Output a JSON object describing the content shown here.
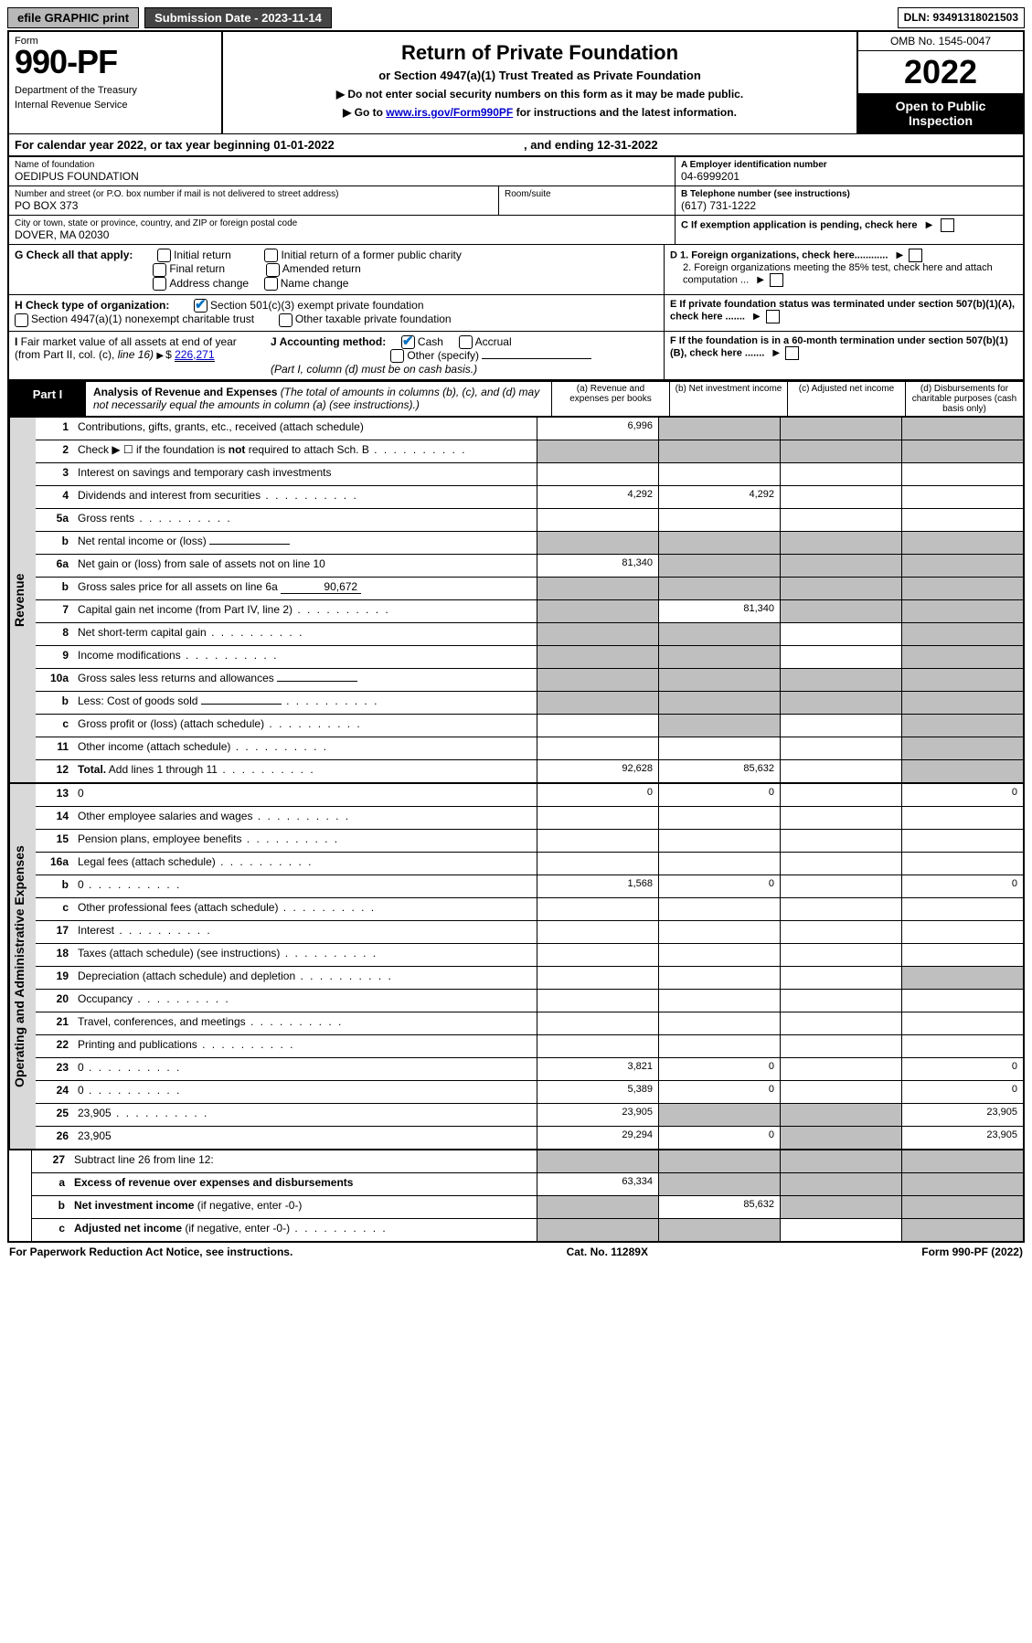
{
  "topbar": {
    "efile": "efile GRAPHIC print",
    "submission_label": "Submission Date - 2023-11-14",
    "dln": "DLN: 93491318021503"
  },
  "header": {
    "form_word": "Form",
    "form_number": "990-PF",
    "dept1": "Department of the Treasury",
    "dept2": "Internal Revenue Service",
    "title": "Return of Private Foundation",
    "subtitle": "or Section 4947(a)(1) Trust Treated as Private Foundation",
    "note1": "▶ Do not enter social security numbers on this form as it may be made public.",
    "note2_pre": "▶ Go to ",
    "note2_link": "www.irs.gov/Form990PF",
    "note2_post": " for instructions and the latest information.",
    "omb": "OMB No. 1545-0047",
    "year": "2022",
    "open": "Open to Public Inspection"
  },
  "cal": {
    "text": "For calendar year 2022, or tax year beginning 01-01-2022",
    "mid": ", and ending 12-31-2022"
  },
  "id": {
    "name_lbl": "Name of foundation",
    "name": "OEDIPUS FOUNDATION",
    "addr_lbl": "Number and street (or P.O. box number if mail is not delivered to street address)",
    "addr": "PO BOX 373",
    "room_lbl": "Room/suite",
    "city_lbl": "City or town, state or province, country, and ZIP or foreign postal code",
    "city": "DOVER, MA  02030",
    "A_lbl": "A Employer identification number",
    "A_val": "04-6999201",
    "B_lbl": "B Telephone number (see instructions)",
    "B_val": "(617) 731-1222",
    "C_lbl": "C If exemption application is pending, check here"
  },
  "G": {
    "lbl": "G Check all that apply:",
    "opts": [
      "Initial return",
      "Final return",
      "Address change",
      "Initial return of a former public charity",
      "Amended return",
      "Name change"
    ]
  },
  "D": {
    "d1": "D 1. Foreign organizations, check here............",
    "d2": "2. Foreign organizations meeting the 85% test, check here and attach computation ...",
    "E": "E  If private foundation status was terminated under section 507(b)(1)(A), check here .......",
    "F": "F  If the foundation is in a 60-month termination under section 507(b)(1)(B), check here ......."
  },
  "H": {
    "lbl": "H Check type of organization:",
    "o1": "Section 501(c)(3) exempt private foundation",
    "o2": "Section 4947(a)(1) nonexempt charitable trust",
    "o3": "Other taxable private foundation"
  },
  "I": {
    "lbl": "I Fair market value of all assets at end of year (from Part II, col. (c), line 16) ▶$",
    "val": "226,271"
  },
  "J": {
    "lbl": "J Accounting method:",
    "cash": "Cash",
    "accrual": "Accrual",
    "other": "Other (specify)",
    "note": "(Part I, column (d) must be on cash basis.)"
  },
  "part1": {
    "label": "Part I",
    "title": "Analysis of Revenue and Expenses",
    "title_note": " (The total of amounts in columns (b), (c), and (d) may not necessarily equal the amounts in column (a) (see instructions).)",
    "col_a": "(a)   Revenue and expenses per books",
    "col_b": "(b)   Net investment income",
    "col_c": "(c)   Adjusted net income",
    "col_d": "(d)  Disbursements for charitable purposes (cash basis only)"
  },
  "side": {
    "rev": "Revenue",
    "exp": "Operating and Administrative Expenses"
  },
  "rows": {
    "1": {
      "n": "1",
      "d": "Contributions, gifts, grants, etc., received (attach schedule)",
      "a": "6,996",
      "shade_bcd": true
    },
    "2": {
      "n": "2",
      "d": "Check ▶ ☐ if the foundation is <b>not</b> required to attach Sch. B",
      "all_shade": true,
      "dots": true
    },
    "3": {
      "n": "3",
      "d": "Interest on savings and temporary cash investments"
    },
    "4": {
      "n": "4",
      "d": "Dividends and interest from securities",
      "a": "4,292",
      "b": "4,292",
      "dots": true
    },
    "5a": {
      "n": "5a",
      "d": "Gross rents",
      "dots": true
    },
    "5b": {
      "n": "b",
      "d": "Net rental income or (loss)",
      "inline": "",
      "all_shade": true
    },
    "6a": {
      "n": "6a",
      "d": "Net gain or (loss) from sale of assets not on line 10",
      "a": "81,340",
      "shade_bcd": true
    },
    "6b": {
      "n": "b",
      "d": "Gross sales price for all assets on line 6a",
      "inline": "90,672",
      "all_shade": true
    },
    "7": {
      "n": "7",
      "d": "Capital gain net income (from Part IV, line 2)",
      "b": "81,340",
      "shade_a": true,
      "shade_cd": true,
      "dots": true
    },
    "8": {
      "n": "8",
      "d": "Net short-term capital gain",
      "shade_ab": true,
      "shade_d": true,
      "dots": true
    },
    "9": {
      "n": "9",
      "d": "Income modifications",
      "shade_ab": true,
      "shade_d": true,
      "dots": true
    },
    "10a": {
      "n": "10a",
      "d": "Gross sales less returns and allowances",
      "inline": "",
      "all_shade": true
    },
    "10b": {
      "n": "b",
      "d": "Less: Cost of goods sold",
      "inline": "",
      "all_shade": true,
      "dots": true
    },
    "10c": {
      "n": "c",
      "d": "Gross profit or (loss) (attach schedule)",
      "shade_b": true,
      "shade_d": true,
      "dots": true
    },
    "11": {
      "n": "11",
      "d": "Other income (attach schedule)",
      "shade_d": true,
      "dots": true
    },
    "12": {
      "n": "12",
      "d": "<b>Total.</b> Add lines 1 through 11",
      "a": "92,628",
      "b": "85,632",
      "shade_d": true,
      "dots": true
    },
    "13": {
      "n": "13",
      "d": "0",
      "a": "0",
      "b": "0"
    },
    "14": {
      "n": "14",
      "d": "Other employee salaries and wages",
      "dots": true
    },
    "15": {
      "n": "15",
      "d": "Pension plans, employee benefits",
      "dots": true
    },
    "16a": {
      "n": "16a",
      "d": "Legal fees (attach schedule)",
      "dots": true
    },
    "16b": {
      "n": "b",
      "d": "0",
      "a": "1,568",
      "b": "0",
      "dots": true
    },
    "16c": {
      "n": "c",
      "d": "Other professional fees (attach schedule)",
      "dots": true
    },
    "17": {
      "n": "17",
      "d": "Interest",
      "dots": true
    },
    "18": {
      "n": "18",
      "d": "Taxes (attach schedule) (see instructions)",
      "dots": true
    },
    "19": {
      "n": "19",
      "d": "Depreciation (attach schedule) and depletion",
      "shade_d": true,
      "dots": true
    },
    "20": {
      "n": "20",
      "d": "Occupancy",
      "dots": true
    },
    "21": {
      "n": "21",
      "d": "Travel, conferences, and meetings",
      "dots": true
    },
    "22": {
      "n": "22",
      "d": "Printing and publications",
      "dots": true
    },
    "23": {
      "n": "23",
      "d": "0",
      "a": "3,821",
      "b": "0",
      "dots": true
    },
    "24": {
      "n": "24",
      "d": "0",
      "a": "5,389",
      "b": "0",
      "dots": true
    },
    "25": {
      "n": "25",
      "d": "23,905",
      "a": "23,905",
      "shade_bc": true,
      "dots": true
    },
    "26": {
      "n": "26",
      "d": "23,905",
      "a": "29,294",
      "b": "0",
      "shade_c": true
    },
    "27": {
      "n": "27",
      "d": "Subtract line 26 from line 12:",
      "all_shade": true
    },
    "27a": {
      "n": "a",
      "d": "<b>Excess of revenue over expenses and disbursements</b>",
      "a": "63,334",
      "shade_bcd": true
    },
    "27b": {
      "n": "b",
      "d": "<b>Net investment income</b> (if negative, enter -0-)",
      "shade_a": true,
      "b": "85,632",
      "shade_cd": true
    },
    "27c": {
      "n": "c",
      "d": "<b>Adjusted net income</b> (if negative, enter -0-)",
      "shade_ab": true,
      "shade_d": true,
      "dots": true
    }
  },
  "footer": {
    "left": "For Paperwork Reduction Act Notice, see instructions.",
    "mid": "Cat. No. 11289X",
    "right": "Form 990-PF (2022)"
  }
}
